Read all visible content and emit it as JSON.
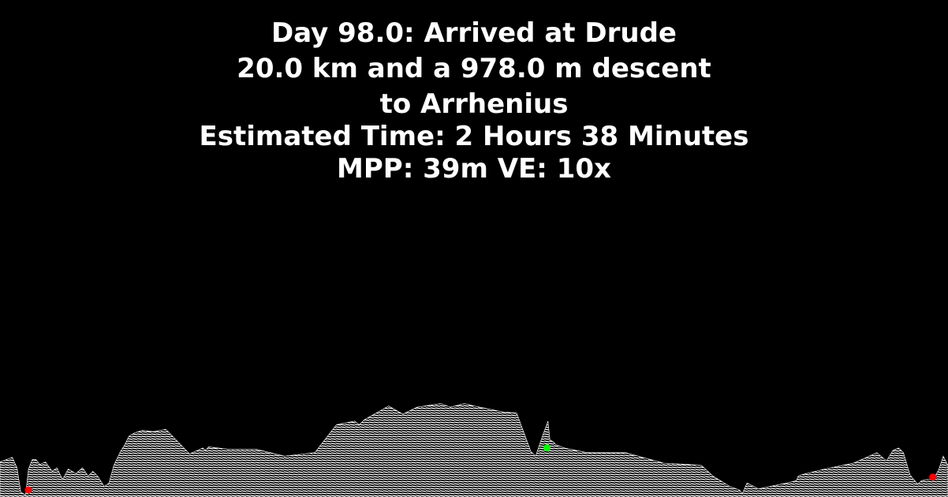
{
  "header": {
    "line1": "Day 98.0: Arrived at Drude",
    "line2": "20.0 km and a 978.0 m descent",
    "line3": "to Arrhenius",
    "line4": "Estimated Time: 2 Hours 38 Minutes",
    "line5": "MPP: 39m VE: 10x"
  },
  "colors": {
    "background": "#000000",
    "text": "#ffffff",
    "terrain_fill": "#ffffff",
    "start_marker": "#ff0000",
    "current_marker": "#00ff00",
    "end_marker": "#ff0000"
  },
  "chart_data": {
    "type": "area",
    "title": "",
    "xlabel": "",
    "ylabel": "",
    "grid": false,
    "distance_km": 20.0,
    "descent_m": 978.0,
    "meters_per_pixel": 39,
    "vertical_exaggeration": 10,
    "x_fraction": [
      0.0,
      0.013,
      0.018,
      0.022,
      0.027,
      0.03,
      0.034,
      0.038,
      0.042,
      0.048,
      0.055,
      0.06,
      0.066,
      0.072,
      0.08,
      0.087,
      0.093,
      0.098,
      0.103,
      0.11,
      0.115,
      0.12,
      0.127,
      0.131,
      0.136,
      0.142,
      0.15,
      0.162,
      0.175,
      0.2,
      0.214,
      0.217,
      0.22,
      0.24,
      0.27,
      0.3,
      0.332,
      0.355,
      0.374,
      0.379,
      0.384,
      0.41,
      0.425,
      0.44,
      0.465,
      0.475,
      0.49,
      0.5,
      0.53,
      0.545,
      0.555,
      0.56,
      0.565,
      0.573,
      0.578,
      0.58,
      0.584,
      0.586,
      0.595,
      0.62,
      0.66,
      0.7,
      0.725,
      0.74,
      0.752,
      0.77,
      0.78,
      0.783,
      0.788,
      0.8,
      0.83,
      0.84,
      0.842,
      0.845,
      0.87,
      0.9,
      0.925,
      0.935,
      0.942,
      0.948,
      0.953,
      0.96,
      0.964,
      0.968,
      0.972,
      0.978,
      0.984,
      0.99,
      0.995,
      1.0
    ],
    "elevation_fraction": [
      0.3,
      0.35,
      0.25,
      0.05,
      0.02,
      0.25,
      0.32,
      0.33,
      0.28,
      0.31,
      0.22,
      0.26,
      0.15,
      0.25,
      0.2,
      0.26,
      0.18,
      0.23,
      0.18,
      0.1,
      0.12,
      0.28,
      0.39,
      0.45,
      0.52,
      0.56,
      0.57,
      0.57,
      0.58,
      0.38,
      0.42,
      0.41,
      0.43,
      0.42,
      0.41,
      0.36,
      0.38,
      0.63,
      0.65,
      0.63,
      0.66,
      0.79,
      0.71,
      0.78,
      0.8,
      0.78,
      0.8,
      0.79,
      0.73,
      0.73,
      0.5,
      0.4,
      0.35,
      0.55,
      0.65,
      0.5,
      0.47,
      0.46,
      0.42,
      0.39,
      0.38,
      0.3,
      0.28,
      0.28,
      0.18,
      0.1,
      0.06,
      0.04,
      0.12,
      0.08,
      0.12,
      0.15,
      0.18,
      0.2,
      0.24,
      0.3,
      0.38,
      0.32,
      0.4,
      0.43,
      0.38,
      0.2,
      0.15,
      0.12,
      0.14,
      0.16,
      0.15,
      0.24,
      0.35,
      0.28
    ],
    "markers": [
      {
        "name": "Drude",
        "role": "start",
        "x_fraction": 0.03,
        "elevation_fraction": 0.06
      },
      {
        "name": "current",
        "role": "current",
        "x_fraction": 0.577,
        "elevation_fraction": 0.42
      },
      {
        "name": "Arrhenius",
        "role": "end",
        "x_fraction": 0.984,
        "elevation_fraction": 0.17
      }
    ]
  }
}
